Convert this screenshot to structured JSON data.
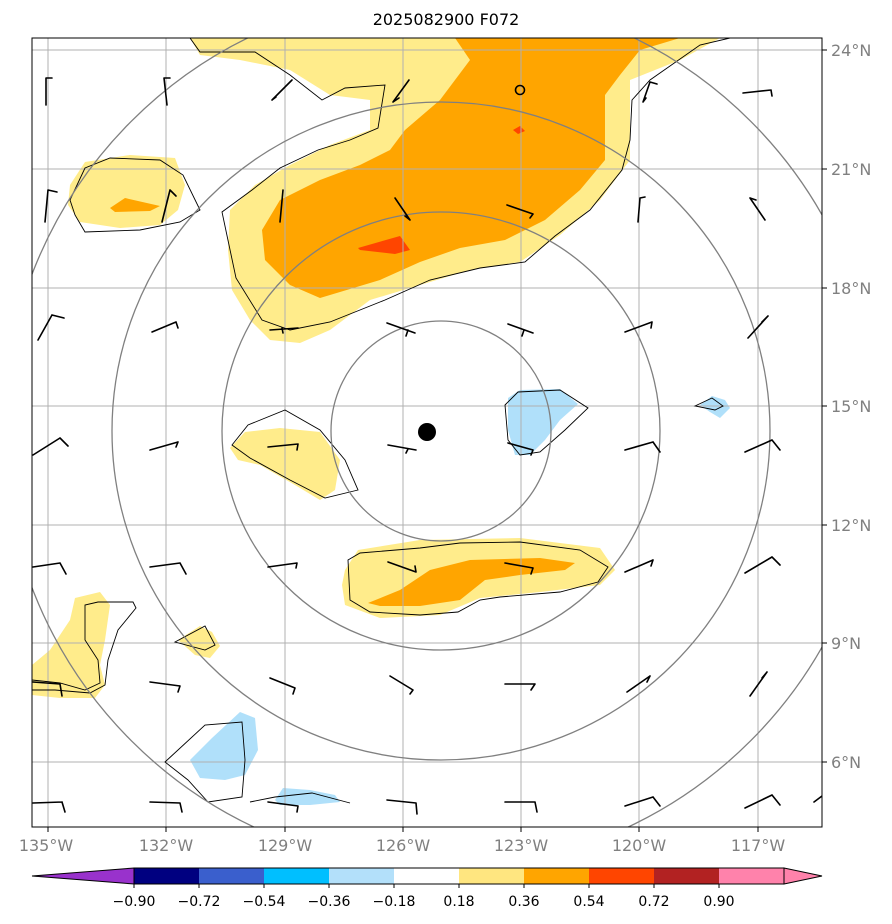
{
  "title": "2025082900 F072",
  "longitude_labels": [
    "135°W",
    "132°W",
    "129°W",
    "126°W",
    "123°W",
    "120°W",
    "117°W"
  ],
  "latitude_labels": [
    "24°N",
    "21°N",
    "18°N",
    "15°N",
    "12°N",
    "9°N",
    "6°N"
  ],
  "colorbar": {
    "labels": [
      "−0.90",
      "−0.72",
      "−0.54",
      "−0.36",
      "−0.18",
      "0.18",
      "0.36",
      "0.54",
      "0.72",
      "0.90"
    ],
    "colors": [
      "#9932cc",
      "#000080",
      "#3a5fcd",
      "#00bfff",
      "#b3e0fa",
      "#ffffff",
      "#ffe680",
      "#ffa500",
      "#ff4500",
      "#b22222",
      "#ff82ab"
    ]
  },
  "colors": {
    "light_yellow": "#ffec8b",
    "orange": "#ffa500",
    "red_orange": "#ff4500",
    "light_blue": "#b0e0fa",
    "grid": "#b0b0b0",
    "range_rings": "#808080"
  },
  "storm_center": {
    "lon": -125.6,
    "lat": 14.4
  }
}
